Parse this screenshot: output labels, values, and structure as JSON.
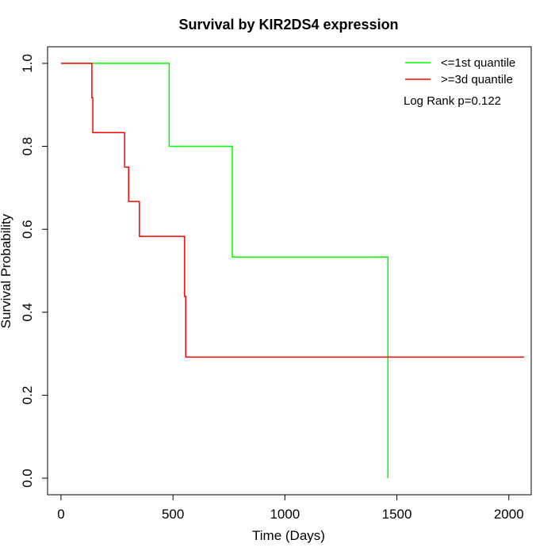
{
  "chart_data": {
    "type": "line",
    "title": "Survival by KIR2DS4 expression",
    "xlabel": "Time (Days)",
    "ylabel": "Survival Probability",
    "xlim": [
      -60,
      2100
    ],
    "ylim": [
      -0.04,
      1.04
    ],
    "xticks": [
      0,
      500,
      1000,
      1500,
      2000
    ],
    "xtick_labels": [
      "0",
      "500",
      "1000",
      "1500",
      "2000"
    ],
    "yticks": [
      0.0,
      0.2,
      0.4,
      0.6,
      0.8,
      1.0
    ],
    "ytick_labels": [
      "0.0",
      "0.2",
      "0.4",
      "0.6",
      "0.8",
      "1.0"
    ],
    "grid": false,
    "legend_position": "top-right",
    "annotation": "Log Rank p=0.122",
    "series": [
      {
        "name": "<=1st quantile",
        "color": "#00ff00",
        "step": true,
        "x": [
          0,
          483,
          765,
          1460,
          1460
        ],
        "y": [
          1.0,
          0.8,
          0.533,
          0.533,
          0.0
        ]
      },
      {
        "name": ">=3d quantile",
        "color": "#ff0000",
        "step": true,
        "x": [
          0,
          138,
          142,
          284,
          302,
          350,
          552,
          557,
          2068
        ],
        "y": [
          1.0,
          0.917,
          0.833,
          0.75,
          0.667,
          0.583,
          0.438,
          0.292,
          0.292
        ]
      }
    ]
  }
}
